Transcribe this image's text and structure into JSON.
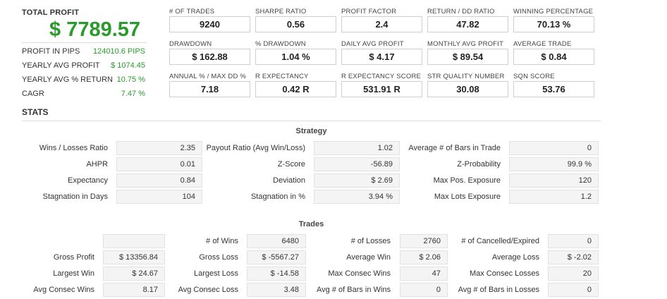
{
  "summary": {
    "total_profit_label": "TOTAL PROFIT",
    "total_profit_value": "$ 7789.57",
    "rows": [
      {
        "label": "PROFIT IN PIPS",
        "value": "124010.6 PIPS"
      },
      {
        "label": "YEARLY AVG PROFIT",
        "value": "$ 1074.45"
      },
      {
        "label": "YEARLY AVG % RETURN",
        "value": "10.75 %"
      },
      {
        "label": "CAGR",
        "value": "7.47 %"
      }
    ]
  },
  "metrics": [
    {
      "label": "# OF TRADES",
      "value": "9240"
    },
    {
      "label": "SHARPE RATIO",
      "value": "0.56"
    },
    {
      "label": "PROFIT FACTOR",
      "value": "2.4"
    },
    {
      "label": "RETURN / DD RATIO",
      "value": "47.82"
    },
    {
      "label": "WINNING PERCENTAGE",
      "value": "70.13 %"
    },
    {
      "label": "DRAWDOWN",
      "value": "$ 162.88"
    },
    {
      "label": "% DRAWDOWN",
      "value": "1.04 %"
    },
    {
      "label": "DAILY AVG PROFIT",
      "value": "$ 4.17"
    },
    {
      "label": "MONTHLY AVG PROFIT",
      "value": "$ 89.54"
    },
    {
      "label": "AVERAGE TRADE",
      "value": "$ 0.84"
    },
    {
      "label": "ANNUAL % / MAX DD %",
      "value": "7.18"
    },
    {
      "label": "R EXPECTANCY",
      "value": "0.42 R"
    },
    {
      "label": "R EXPECTANCY SCORE",
      "value": "531.91 R"
    },
    {
      "label": "STR QUALITY NUMBER",
      "value": "30.08"
    },
    {
      "label": "SQN SCORE",
      "value": "53.76"
    }
  ],
  "stats": {
    "title": "STATS",
    "strategy": {
      "title": "Strategy",
      "rows": [
        [
          {
            "label": "Wins / Losses Ratio",
            "value": "2.35"
          },
          {
            "label": "Payout Ratio (Avg Win/Loss)",
            "value": "1.02"
          },
          {
            "label": "Average # of Bars in Trade",
            "value": "0"
          }
        ],
        [
          {
            "label": "AHPR",
            "value": "0.01"
          },
          {
            "label": "Z-Score",
            "value": "-56.89"
          },
          {
            "label": "Z-Probability",
            "value": "99.9 %"
          }
        ],
        [
          {
            "label": "Expectancy",
            "value": "0.84"
          },
          {
            "label": "Deviation",
            "value": "$ 2.69"
          },
          {
            "label": "Max Pos. Exposure",
            "value": "120"
          }
        ],
        [
          {
            "label": "Stagnation in Days",
            "value": "104"
          },
          {
            "label": "Stagnation in %",
            "value": "3.94 %"
          },
          {
            "label": "Max Lots Exposure",
            "value": "1.2"
          }
        ]
      ]
    },
    "trades": {
      "title": "Trades",
      "rows": [
        [
          {
            "label": "",
            "value": ""
          },
          {
            "label": "# of Wins",
            "value": "6480"
          },
          {
            "label": "# of Losses",
            "value": "2760"
          },
          {
            "label": "# of Cancelled/Expired",
            "value": "0"
          }
        ],
        [
          {
            "label": "Gross Profit",
            "value": "$ 13356.84"
          },
          {
            "label": "Gross Loss",
            "value": "$ -5567.27"
          },
          {
            "label": "Average Win",
            "value": "$ 2.06"
          },
          {
            "label": "Average Loss",
            "value": "$ -2.02"
          }
        ],
        [
          {
            "label": "Largest Win",
            "value": "$ 24.67"
          },
          {
            "label": "Largest Loss",
            "value": "$ -14.58"
          },
          {
            "label": "Max Consec Wins",
            "value": "47"
          },
          {
            "label": "Max Consec Losses",
            "value": "20"
          }
        ],
        [
          {
            "label": "Avg Consec Wins",
            "value": "8.17"
          },
          {
            "label": "Avg Consec Loss",
            "value": "3.48"
          },
          {
            "label": "Avg # of Bars in Wins",
            "value": "0"
          },
          {
            "label": "Avg # of Bars in Losses",
            "value": "0"
          }
        ]
      ]
    }
  }
}
